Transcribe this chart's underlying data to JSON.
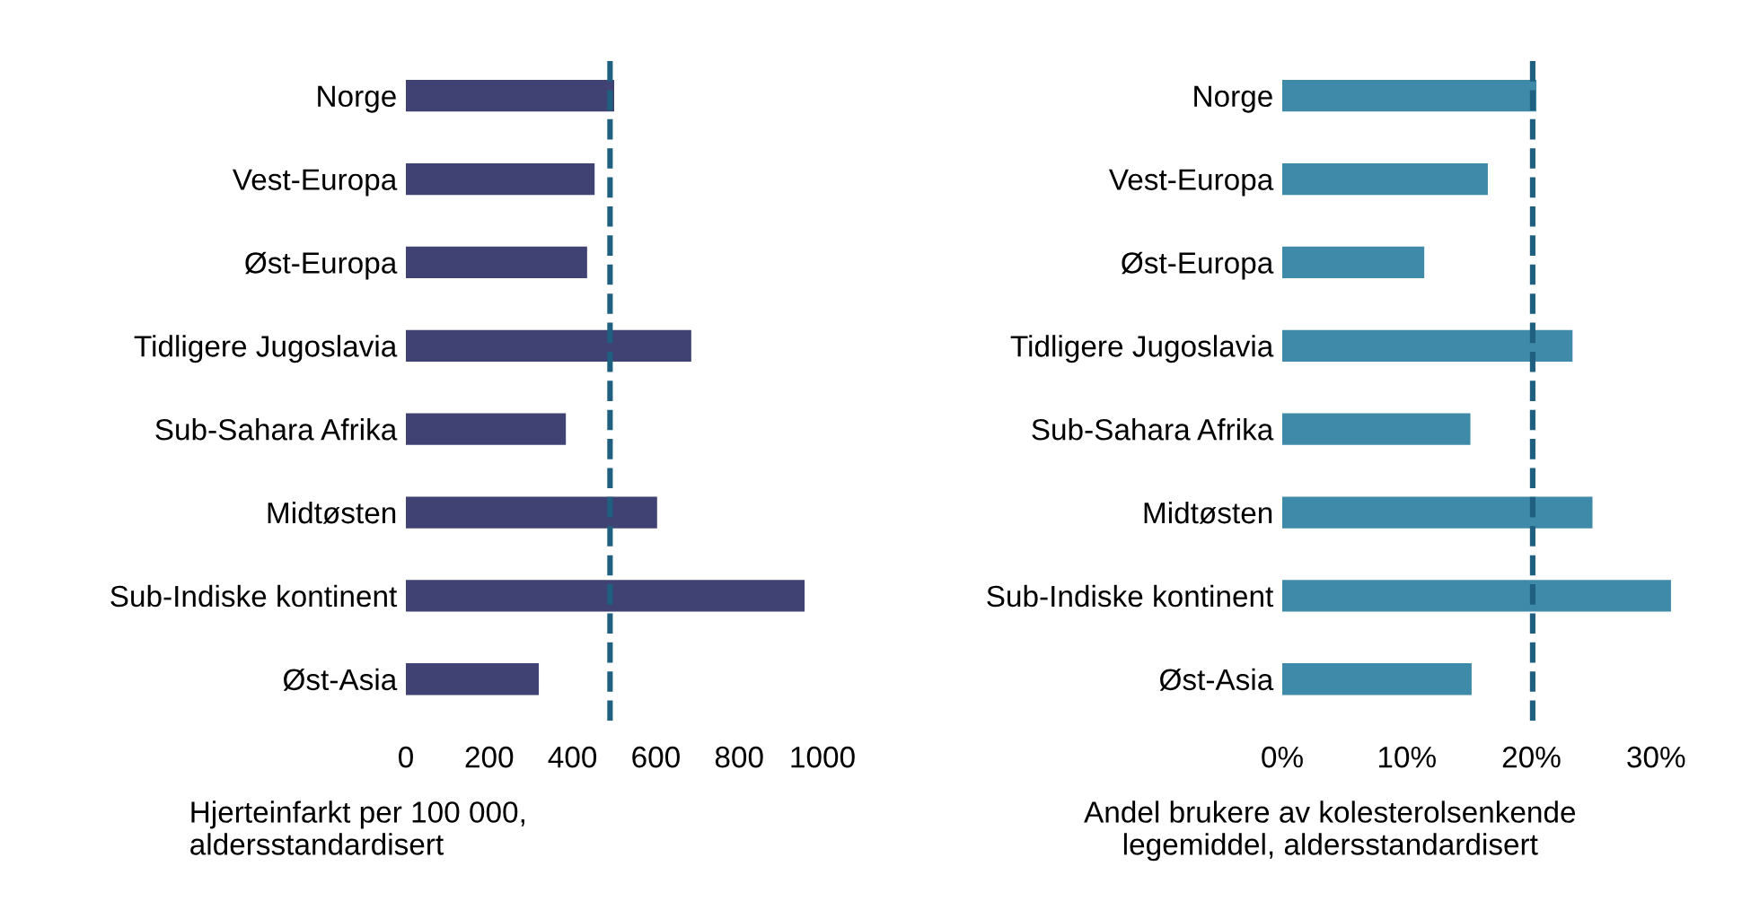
{
  "chart_data": [
    {
      "type": "bar",
      "orientation": "horizontal",
      "categories": [
        "Norge",
        "Vest-Europa",
        "Øst-Europa",
        "Tidligere Jugoslavia",
        "Sub-Sahara Afrika",
        "Midtøsten",
        "Sub-Indiske kontinent",
        "Øst-Asia"
      ],
      "values": [
        500,
        453,
        435,
        685,
        384,
        603,
        957,
        319
      ],
      "color": "#3f4272",
      "xlim": [
        0,
        1000
      ],
      "xticks": [
        0,
        200,
        400,
        600,
        800,
        1000
      ],
      "xlabel": "Hjerteinfarkt per 100 000,\naldersstandardisert",
      "ref_lines": [
        {
          "axis": "x",
          "value": 490,
          "color": "#1f5f80",
          "line_style": "dashed"
        }
      ],
      "grid": false,
      "legend": false
    },
    {
      "type": "bar",
      "orientation": "horizontal",
      "categories": [
        "Norge",
        "Vest-Europa",
        "Øst-Europa",
        "Tidligere Jugoslavia",
        "Sub-Sahara Afrika",
        "Midtøsten",
        "Sub-Indiske kontinent",
        "Øst-Asia"
      ],
      "values": [
        20.4,
        16.5,
        11.4,
        23.3,
        15.1,
        24.9,
        31.2,
        15.2
      ],
      "color": "#3f8aa9",
      "xlim": [
        0,
        32
      ],
      "xticks": [
        {
          "value": 0,
          "label": "0%"
        },
        {
          "value": 10,
          "label": "10%"
        },
        {
          "value": 20,
          "label": "20%"
        },
        {
          "value": 30,
          "label": "30%"
        }
      ],
      "xlabel": "Andel brukere av kolesterolsenkende\nlegemiddel, aldersstandardisert",
      "ref_lines": [
        {
          "axis": "x",
          "value": 20.1,
          "color": "#1f5f80",
          "line_style": "dashed"
        }
      ],
      "grid": false,
      "legend": false
    }
  ]
}
